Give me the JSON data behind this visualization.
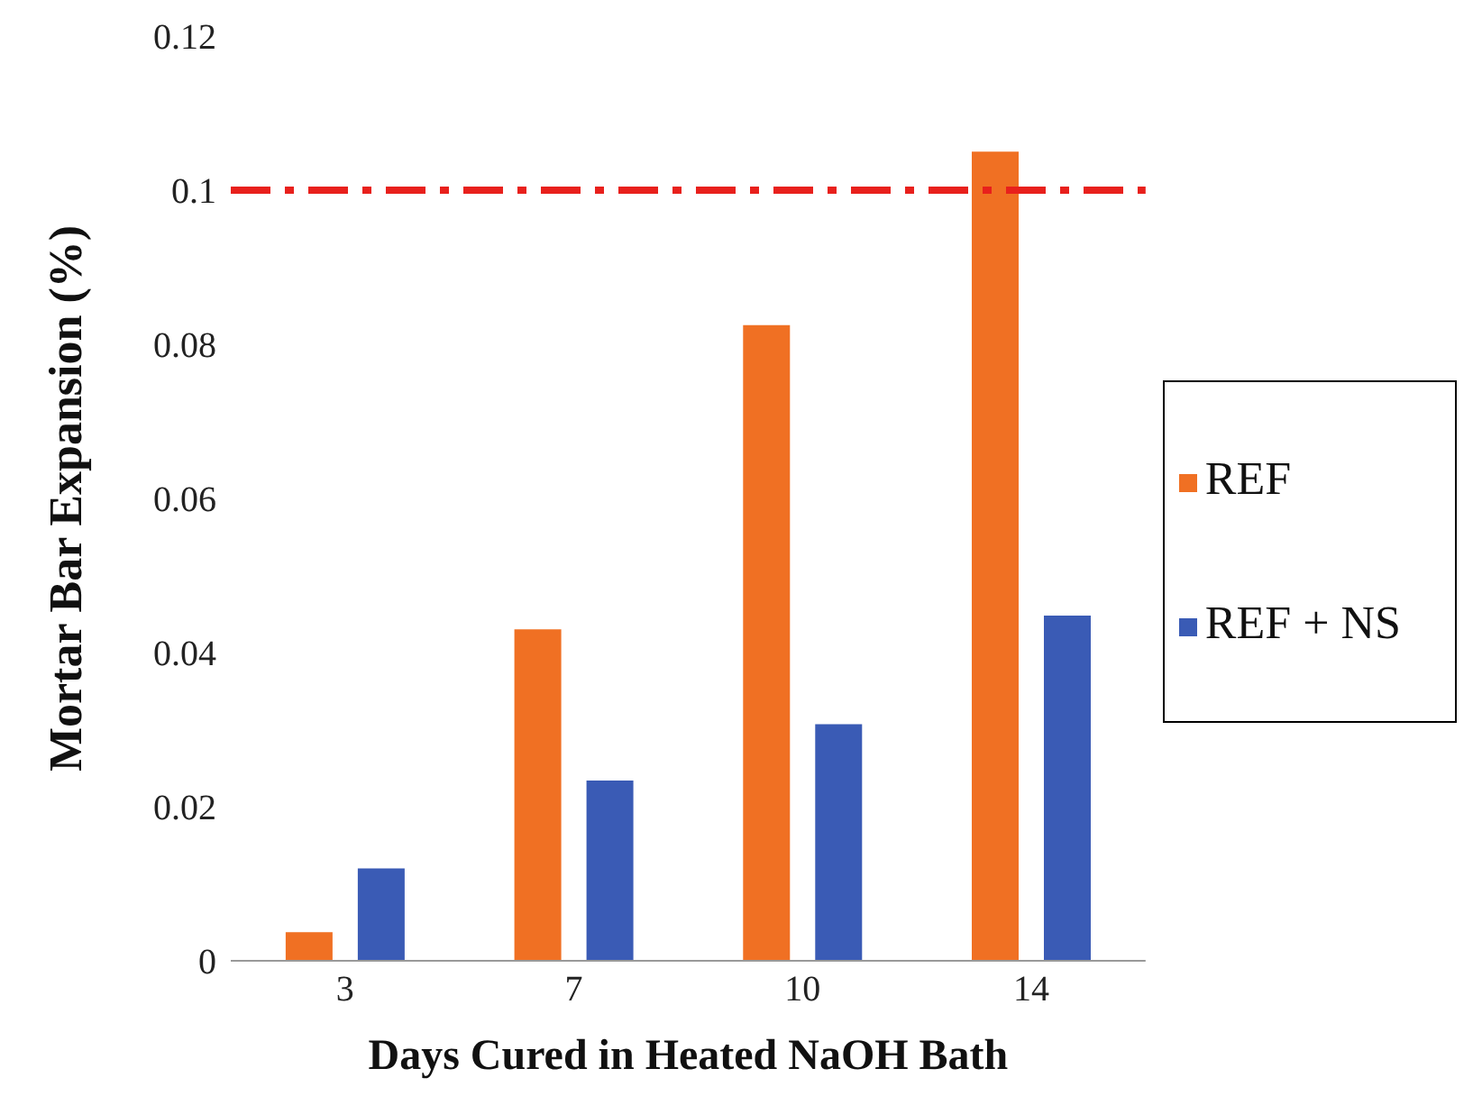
{
  "chart_data": {
    "type": "bar",
    "xlabel": "Days Cured in Heated NaOH Bath",
    "ylabel": "Mortar Bar Expansion (%)",
    "categories": [
      "3",
      "7",
      "10",
      "14"
    ],
    "series": [
      {
        "name": "REF",
        "color": "#f07023",
        "values": [
          0.0037,
          0.043,
          0.0825,
          0.105
        ]
      },
      {
        "name": "REF + NS",
        "color": "#3a5bb5",
        "values": [
          0.012,
          0.0234,
          0.0307,
          0.0448
        ]
      }
    ],
    "ylim": [
      0,
      0.12
    ],
    "yticks": [
      0,
      0.02,
      0.04,
      0.06,
      0.08,
      0.1,
      0.12
    ],
    "ref_lines": [
      {
        "axis": "y",
        "value": 0.1,
        "color": "#e8201c",
        "line_style": "dashed"
      }
    ],
    "legend": "right"
  }
}
